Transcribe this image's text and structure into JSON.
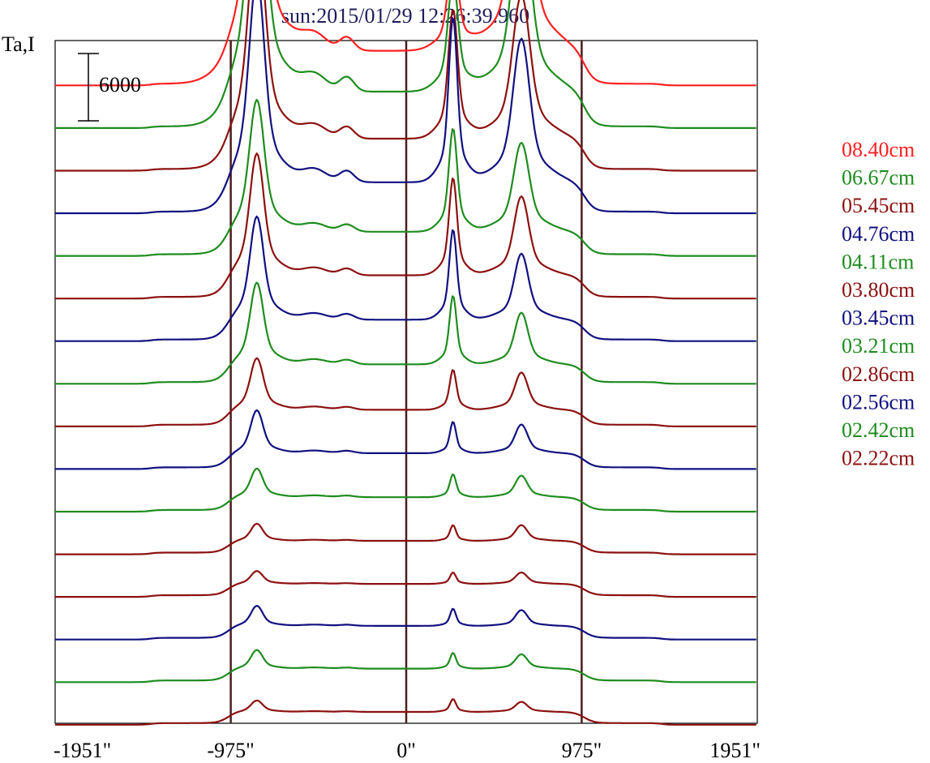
{
  "chart_data": {
    "type": "line",
    "title": "sun:2015/01/29 12:26:39.960",
    "ylabel": "Ta,I",
    "xlabel": "",
    "x_ticks": [
      {
        "value": -1951,
        "label": "-1951\""
      },
      {
        "value": -975,
        "label": "-975\""
      },
      {
        "value": 0,
        "label": "0\""
      },
      {
        "value": 975,
        "label": "975\""
      },
      {
        "value": 1951,
        "label": "1951\""
      }
    ],
    "xlim": [
      -1951,
      1951
    ],
    "vertical_lines": [
      -975,
      0,
      975
    ],
    "scale_bar": {
      "value": 6000,
      "label": "6000"
    },
    "legend_position": "right",
    "series": [
      {
        "name": "08.40cm",
        "color": "#ff2020",
        "baseline": 56000,
        "peaks": [
          {
            "x": -830,
            "amp": 17000,
            "w": 48
          },
          {
            "x": 260,
            "amp": 6200,
            "w": 28
          },
          {
            "x": 640,
            "amp": 14700,
            "w": 50
          }
        ]
      },
      {
        "name": "06.67cm",
        "color": "#1e8c1e",
        "baseline": 52200,
        "peaks": [
          {
            "x": -830,
            "amp": 18300,
            "w": 44
          },
          {
            "x": 260,
            "amp": 7700,
            "w": 26
          },
          {
            "x": 640,
            "amp": 12500,
            "w": 48
          }
        ]
      },
      {
        "name": "05.45cm",
        "color": "#8c1010",
        "baseline": 48400,
        "peaks": [
          {
            "x": -830,
            "amp": 15000,
            "w": 42
          },
          {
            "x": 260,
            "amp": 9000,
            "w": 24
          },
          {
            "x": 640,
            "amp": 10000,
            "w": 45
          }
        ]
      },
      {
        "name": "04.76cm",
        "color": "#101080",
        "baseline": 44600,
        "peaks": [
          {
            "x": -830,
            "amp": 14300,
            "w": 40
          },
          {
            "x": 260,
            "amp": 11500,
            "w": 22
          },
          {
            "x": 640,
            "amp": 10000,
            "w": 43
          }
        ]
      },
      {
        "name": "04.11cm",
        "color": "#1e8c1e",
        "baseline": 40800,
        "peaks": [
          {
            "x": -830,
            "amp": 9200,
            "w": 38
          },
          {
            "x": 260,
            "amp": 7200,
            "w": 21
          },
          {
            "x": 640,
            "amp": 6200,
            "w": 40
          }
        ]
      },
      {
        "name": "03.80cm",
        "color": "#8c1010",
        "baseline": 37000,
        "peaks": [
          {
            "x": -830,
            "amp": 8500,
            "w": 36
          },
          {
            "x": 260,
            "amp": 6800,
            "w": 20
          },
          {
            "x": 640,
            "amp": 5500,
            "w": 38
          }
        ]
      },
      {
        "name": "03.45cm",
        "color": "#101080",
        "baseline": 33200,
        "peaks": [
          {
            "x": -830,
            "amp": 7200,
            "w": 35
          },
          {
            "x": 260,
            "amp": 6300,
            "w": 19
          },
          {
            "x": 640,
            "amp": 4600,
            "w": 36
          }
        ]
      },
      {
        "name": "03.21cm",
        "color": "#1e8c1e",
        "baseline": 29400,
        "peaks": [
          {
            "x": -830,
            "amp": 5700,
            "w": 34
          },
          {
            "x": 260,
            "amp": 4800,
            "w": 18
          },
          {
            "x": 640,
            "amp": 3600,
            "w": 34
          }
        ]
      },
      {
        "name": "02.86cm",
        "color": "#8c1010",
        "baseline": 25600,
        "peaks": [
          {
            "x": -830,
            "amp": 3600,
            "w": 33
          },
          {
            "x": 260,
            "amp": 2800,
            "w": 17
          },
          {
            "x": 640,
            "amp": 2600,
            "w": 33
          }
        ]
      },
      {
        "name": "02.56cm",
        "color": "#101080",
        "baseline": 21800,
        "peaks": [
          {
            "x": -830,
            "amp": 3000,
            "w": 32
          },
          {
            "x": 260,
            "amp": 2200,
            "w": 16
          },
          {
            "x": 640,
            "amp": 2000,
            "w": 32
          }
        ]
      },
      {
        "name": "02.42cm",
        "color": "#1e8c1e",
        "baseline": 18000,
        "peaks": [
          {
            "x": -830,
            "amp": 2000,
            "w": 31
          },
          {
            "x": 260,
            "amp": 1600,
            "w": 16
          },
          {
            "x": 640,
            "amp": 1500,
            "w": 31
          }
        ]
      },
      {
        "name": "02.22cm",
        "color": "#8c1010",
        "baseline": 14200,
        "peaks": [
          {
            "x": -830,
            "amp": 1200,
            "w": 30
          },
          {
            "x": 260,
            "amp": 1100,
            "w": 15
          },
          {
            "x": 640,
            "amp": 1100,
            "w": 30
          }
        ]
      }
    ],
    "unlabeled_series": [
      {
        "color": "#8c1010",
        "baseline": 10400,
        "peaks": [
          {
            "x": -830,
            "amp": 900,
            "w": 30
          },
          {
            "x": 260,
            "amp": 800,
            "w": 15
          },
          {
            "x": 640,
            "amp": 800,
            "w": 30
          }
        ]
      },
      {
        "color": "#101080",
        "baseline": 6600,
        "peaks": [
          {
            "x": -830,
            "amp": 1400,
            "w": 30
          },
          {
            "x": 260,
            "amp": 1200,
            "w": 15
          },
          {
            "x": 640,
            "amp": 1100,
            "w": 30
          }
        ]
      },
      {
        "color": "#1e8c1e",
        "baseline": 2800,
        "peaks": [
          {
            "x": -830,
            "amp": 1300,
            "w": 30
          },
          {
            "x": 260,
            "amp": 1100,
            "w": 15
          },
          {
            "x": 640,
            "amp": 1000,
            "w": 30
          }
        ]
      },
      {
        "color": "#8c1010",
        "baseline": -1000,
        "peaks": [
          {
            "x": -830,
            "amp": 800,
            "w": 30
          },
          {
            "x": 260,
            "amp": 900,
            "w": 15
          },
          {
            "x": 640,
            "amp": 700,
            "w": 30
          }
        ]
      }
    ]
  }
}
